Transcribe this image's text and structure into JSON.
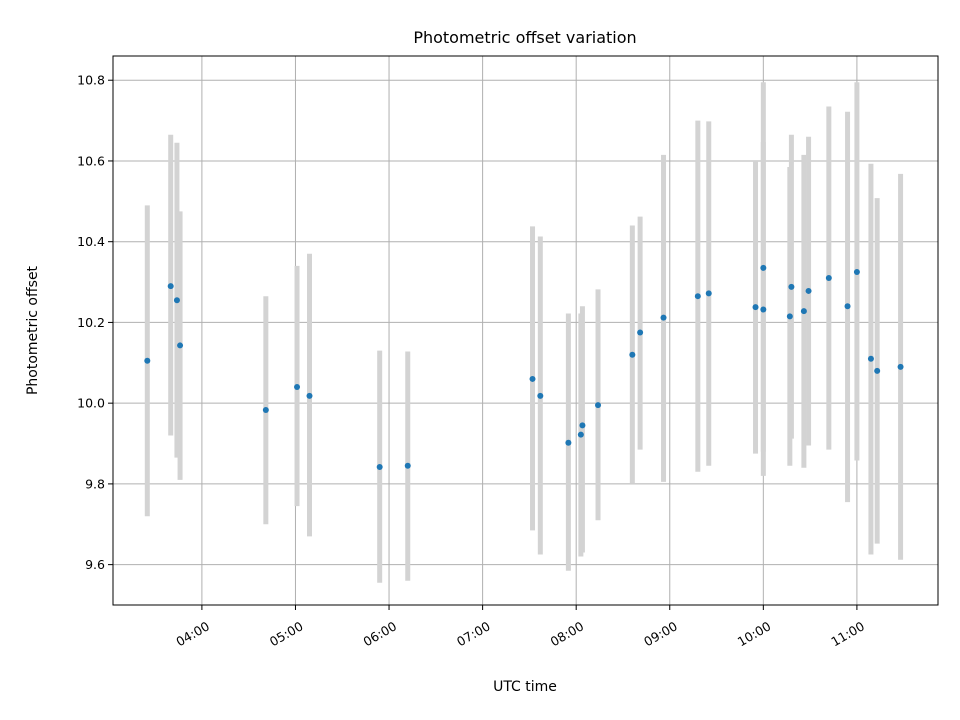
{
  "chart_data": {
    "type": "scatter",
    "title": "Photometric offset variation",
    "xlabel": "UTC time",
    "ylabel": "Photometric offset",
    "x_axis": "time",
    "xlim": [
      "03:03",
      "11:52"
    ],
    "ylim": [
      9.5,
      10.86
    ],
    "x_ticks": [
      "04:00",
      "05:00",
      "06:00",
      "07:00",
      "08:00",
      "09:00",
      "10:00",
      "11:00"
    ],
    "y_ticks": [
      "9.6",
      "9.8",
      "10.0",
      "10.2",
      "10.4",
      "10.6",
      "10.8"
    ],
    "grid": true,
    "legend": false,
    "colors": {
      "point": "#1f77b4",
      "errorbar": "#d3d3d3",
      "grid": "#b0b0b0"
    },
    "points": [
      {
        "x": "03:25",
        "y": 10.105,
        "lo": 9.72,
        "hi": 10.49
      },
      {
        "x": "03:40",
        "y": 10.29,
        "lo": 9.92,
        "hi": 10.665
      },
      {
        "x": "03:44",
        "y": 10.255,
        "lo": 9.865,
        "hi": 10.645
      },
      {
        "x": "03:46",
        "y": 10.143,
        "lo": 9.81,
        "hi": 10.475
      },
      {
        "x": "04:41",
        "y": 9.983,
        "lo": 9.7,
        "hi": 10.265
      },
      {
        "x": "05:01",
        "y": 10.04,
        "lo": 9.745,
        "hi": 10.34
      },
      {
        "x": "05:09",
        "y": 10.018,
        "lo": 9.67,
        "hi": 10.37
      },
      {
        "x": "05:54",
        "y": 9.842,
        "lo": 9.555,
        "hi": 10.13
      },
      {
        "x": "06:12",
        "y": 9.845,
        "lo": 9.56,
        "hi": 10.128
      },
      {
        "x": "07:32",
        "y": 10.06,
        "lo": 9.685,
        "hi": 10.438
      },
      {
        "x": "07:37",
        "y": 10.018,
        "lo": 9.625,
        "hi": 10.413
      },
      {
        "x": "07:55",
        "y": 9.902,
        "lo": 9.585,
        "hi": 10.222
      },
      {
        "x": "08:03",
        "y": 9.922,
        "lo": 9.62,
        "hi": 10.222
      },
      {
        "x": "08:04",
        "y": 9.945,
        "lo": 9.63,
        "hi": 10.24
      },
      {
        "x": "08:14",
        "y": 9.995,
        "lo": 9.71,
        "hi": 10.282
      },
      {
        "x": "08:36",
        "y": 10.12,
        "lo": 9.8,
        "hi": 10.44
      },
      {
        "x": "08:41",
        "y": 10.175,
        "lo": 9.885,
        "hi": 10.462
      },
      {
        "x": "08:56",
        "y": 10.212,
        "lo": 9.805,
        "hi": 10.615
      },
      {
        "x": "09:18",
        "y": 10.265,
        "lo": 9.83,
        "hi": 10.7
      },
      {
        "x": "09:25",
        "y": 10.272,
        "lo": 9.845,
        "hi": 10.698
      },
      {
        "x": "09:55",
        "y": 10.238,
        "lo": 9.875,
        "hi": 10.6
      },
      {
        "x": "10:00",
        "y": 10.232,
        "lo": 9.82,
        "hi": 10.647
      },
      {
        "x": "10:00",
        "y": 10.335,
        "lo": 9.88,
        "hi": 10.795
      },
      {
        "x": "10:17",
        "y": 10.215,
        "lo": 9.845,
        "hi": 10.585
      },
      {
        "x": "10:18",
        "y": 10.288,
        "lo": 9.912,
        "hi": 10.665
      },
      {
        "x": "10:26",
        "y": 10.228,
        "lo": 9.84,
        "hi": 10.615
      },
      {
        "x": "10:29",
        "y": 10.278,
        "lo": 9.895,
        "hi": 10.66
      },
      {
        "x": "10:42",
        "y": 10.31,
        "lo": 9.885,
        "hi": 10.735
      },
      {
        "x": "10:54",
        "y": 10.24,
        "lo": 9.755,
        "hi": 10.722
      },
      {
        "x": "11:00",
        "y": 10.325,
        "lo": 9.858,
        "hi": 10.795
      },
      {
        "x": "11:09",
        "y": 10.11,
        "lo": 9.625,
        "hi": 10.593
      },
      {
        "x": "11:13",
        "y": 10.08,
        "lo": 9.652,
        "hi": 10.508
      },
      {
        "x": "11:28",
        "y": 10.09,
        "lo": 9.612,
        "hi": 10.568
      }
    ]
  }
}
